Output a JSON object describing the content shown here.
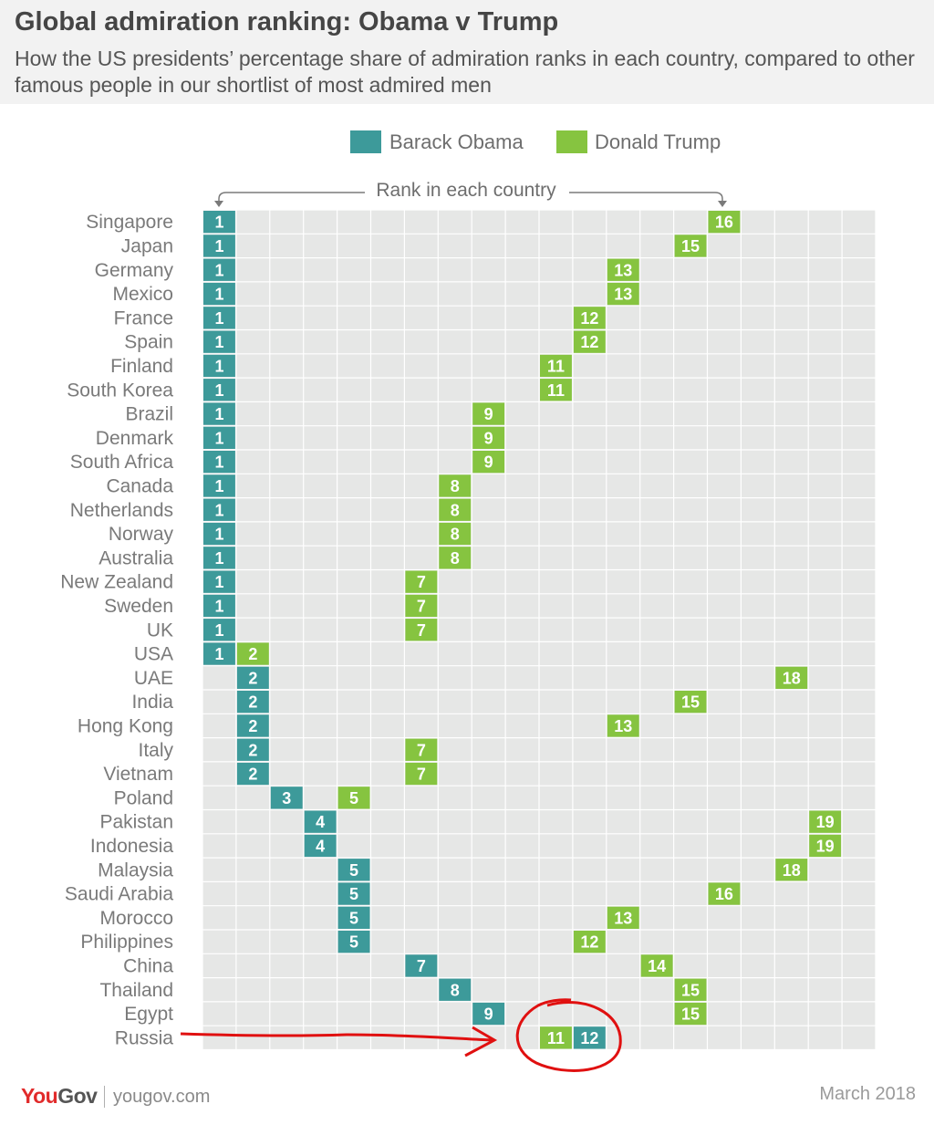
{
  "header": {
    "title": "Global admiration ranking: Obama v Trump",
    "subtitle": "How the US presidents’ percentage share of admiration ranks in each country, compared to other famous people in our shortlist of most admired men"
  },
  "legend": {
    "obama_label": "Barack Obama",
    "trump_label": "Donald Trump"
  },
  "colors": {
    "obama": "#3d9a9a",
    "trump": "#86c440",
    "grid_bg": "#e6e7e6",
    "annotation": "#e01010"
  },
  "chart_data": {
    "type": "table",
    "title": "Global admiration ranking: Obama v Trump",
    "column_label": "Rank in each country",
    "rank_range": [
      1,
      20
    ],
    "legend_position": "top",
    "countries": [
      "Singapore",
      "Japan",
      "Germany",
      "Mexico",
      "France",
      "Spain",
      "Finland",
      "South Korea",
      "Brazil",
      "Denmark",
      "South Africa",
      "Canada",
      "Netherlands",
      "Norway",
      "Australia",
      "New Zealand",
      "Sweden",
      "UK",
      "USA",
      "UAE",
      "India",
      "Hong Kong",
      "Italy",
      "Vietnam",
      "Poland",
      "Pakistan",
      "Indonesia",
      "Malaysia",
      "Saudi Arabia",
      "Morocco",
      "Philippines",
      "China",
      "Thailand",
      "Egypt",
      "Russia"
    ],
    "series": [
      {
        "name": "Barack Obama",
        "values": [
          1,
          1,
          1,
          1,
          1,
          1,
          1,
          1,
          1,
          1,
          1,
          1,
          1,
          1,
          1,
          1,
          1,
          1,
          1,
          2,
          2,
          2,
          2,
          2,
          3,
          4,
          4,
          5,
          5,
          5,
          5,
          7,
          8,
          9,
          12
        ]
      },
      {
        "name": "Donald Trump",
        "values": [
          16,
          15,
          13,
          13,
          12,
          12,
          11,
          11,
          9,
          9,
          9,
          8,
          8,
          8,
          8,
          7,
          7,
          7,
          2,
          18,
          15,
          13,
          7,
          7,
          5,
          19,
          19,
          18,
          16,
          13,
          12,
          14,
          15,
          15,
          11
        ]
      }
    ]
  },
  "footer": {
    "brand_you": "You",
    "brand_gov": "Gov",
    "url": "yougov.com",
    "date": "March 2018"
  }
}
